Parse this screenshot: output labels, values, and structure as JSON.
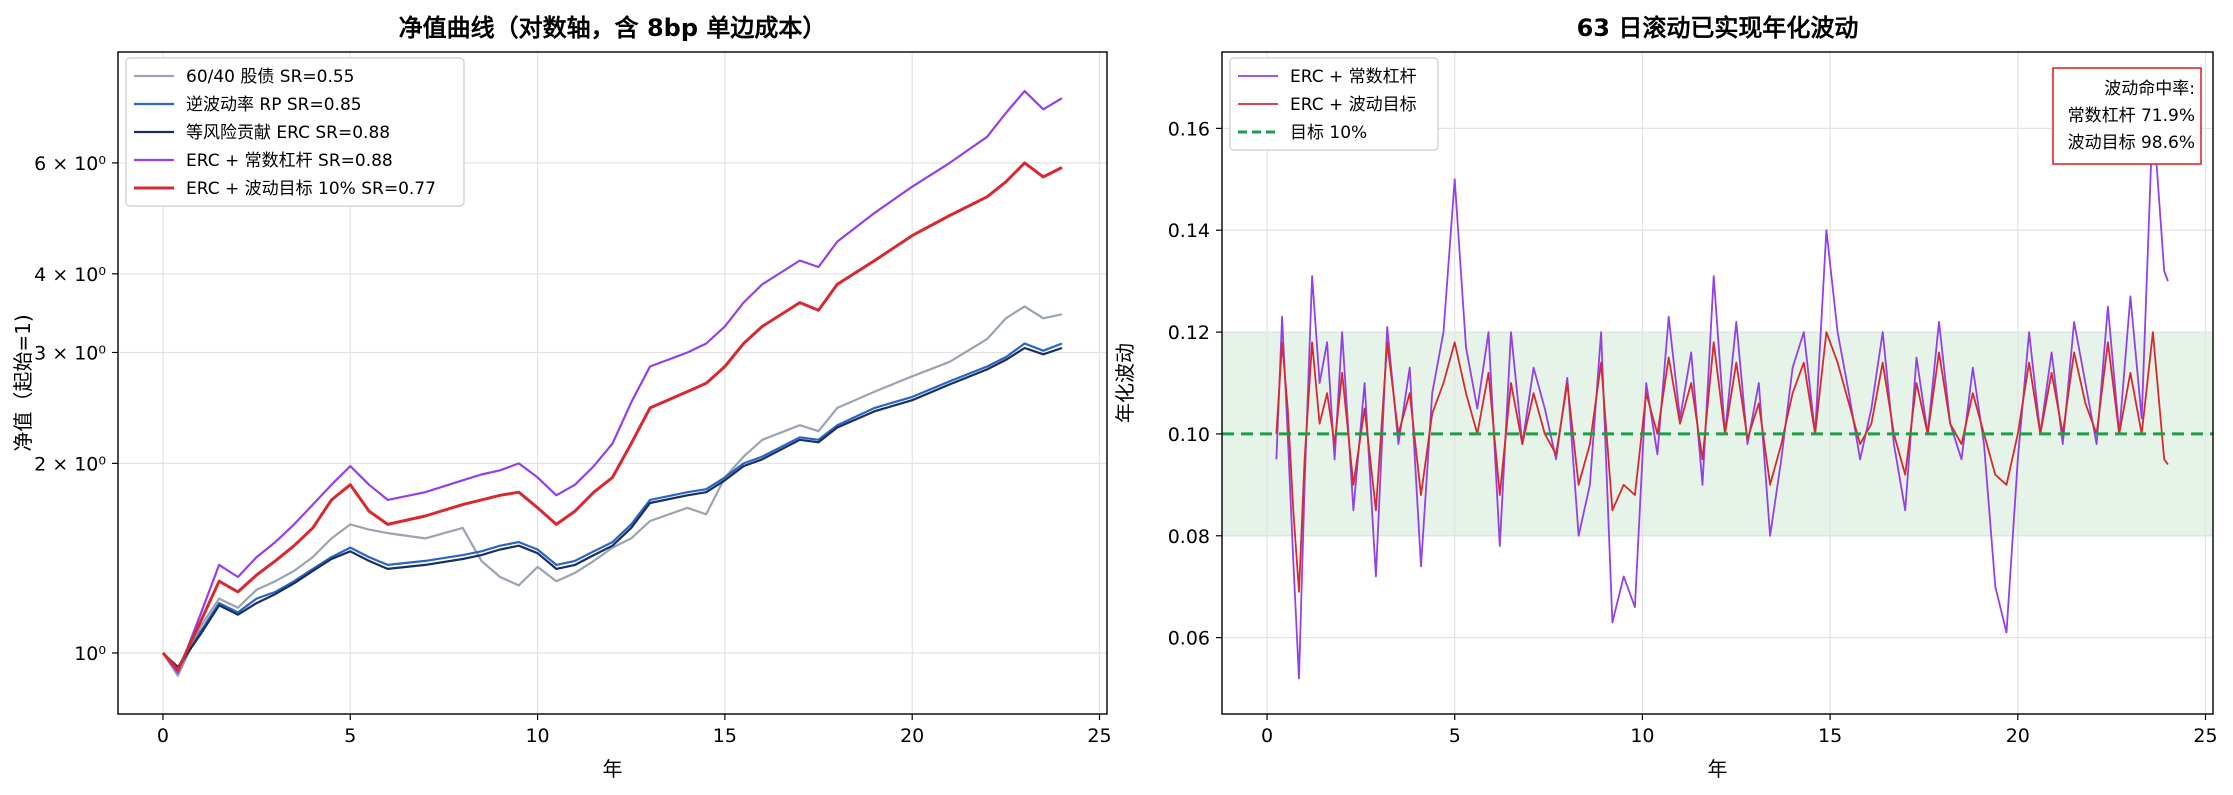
{
  "chart_data": [
    {
      "type": "line",
      "title": "净值曲线（对数轴，含 8bp 单边成本）",
      "xlabel": "年",
      "ylabel": "净值（起始=1)",
      "yscale": "log",
      "xlim": [
        -1.2,
        25.2
      ],
      "ylim": [
        0.8,
        9.0
      ],
      "xticks": [
        0,
        5,
        10,
        15,
        20,
        25
      ],
      "xtick_labels": [
        "0",
        "5",
        "10",
        "15",
        "20",
        "25"
      ],
      "yticks": [
        1,
        2,
        3,
        4,
        6
      ],
      "ytick_labels": [
        "10⁰",
        "2 × 10⁰",
        "3 × 10⁰",
        "4 × 10⁰",
        "6 × 10⁰"
      ],
      "grid": true,
      "legend_position": "upper-left",
      "series": [
        {
          "name": "60/40 股债  SR=0.55",
          "color": "#9aa3b0",
          "width": 2.2,
          "x": [
            0,
            0.4,
            1.0,
            1.5,
            2.0,
            2.5,
            3.0,
            3.5,
            4.0,
            4.5,
            5.0,
            5.5,
            6.0,
            7.0,
            8.0,
            8.5,
            9.0,
            9.5,
            10.0,
            10.5,
            11.0,
            11.5,
            12.0,
            12.5,
            13.0,
            14.0,
            14.5,
            15.0,
            15.5,
            16.0,
            17.0,
            17.5,
            18.0,
            19.0,
            20.0,
            21.0,
            22.0,
            22.5,
            23.0,
            23.5,
            24.0
          ],
          "y": [
            1.0,
            0.92,
            1.1,
            1.22,
            1.18,
            1.26,
            1.3,
            1.35,
            1.42,
            1.52,
            1.6,
            1.57,
            1.55,
            1.52,
            1.58,
            1.4,
            1.32,
            1.28,
            1.37,
            1.3,
            1.34,
            1.4,
            1.47,
            1.52,
            1.62,
            1.7,
            1.66,
            1.9,
            2.05,
            2.18,
            2.3,
            2.25,
            2.45,
            2.6,
            2.75,
            2.9,
            3.15,
            3.4,
            3.55,
            3.4,
            3.45
          ]
        },
        {
          "name": "逆波动率 RP  SR=0.85",
          "color": "#2a64c8",
          "width": 2.2,
          "x": [
            0,
            0.4,
            1.0,
            1.5,
            2.0,
            2.5,
            3.0,
            3.5,
            4.0,
            4.5,
            5.0,
            5.5,
            6.0,
            7.0,
            8.0,
            8.5,
            9.0,
            9.5,
            10.0,
            10.5,
            11.0,
            11.5,
            12.0,
            12.5,
            13.0,
            14.0,
            14.5,
            15.0,
            15.5,
            16.0,
            17.0,
            17.5,
            18.0,
            19.0,
            20.0,
            21.0,
            22.0,
            22.5,
            23.0,
            23.5,
            24.0
          ],
          "y": [
            1.0,
            0.94,
            1.08,
            1.2,
            1.16,
            1.22,
            1.25,
            1.3,
            1.36,
            1.42,
            1.47,
            1.42,
            1.38,
            1.4,
            1.43,
            1.45,
            1.48,
            1.5,
            1.46,
            1.38,
            1.4,
            1.45,
            1.5,
            1.6,
            1.75,
            1.8,
            1.82,
            1.9,
            2.0,
            2.05,
            2.2,
            2.18,
            2.3,
            2.45,
            2.55,
            2.7,
            2.85,
            2.95,
            3.1,
            3.02,
            3.1
          ]
        },
        {
          "name": "等风险贡献 ERC  SR=0.88",
          "color": "#1a2f5a",
          "width": 2.2,
          "x": [
            0,
            0.4,
            1.0,
            1.5,
            2.0,
            2.5,
            3.0,
            3.5,
            4.0,
            4.5,
            5.0,
            5.5,
            6.0,
            7.0,
            8.0,
            8.5,
            9.0,
            9.5,
            10.0,
            10.5,
            11.0,
            11.5,
            12.0,
            12.5,
            13.0,
            14.0,
            14.5,
            15.0,
            15.5,
            16.0,
            17.0,
            17.5,
            18.0,
            19.0,
            20.0,
            21.0,
            22.0,
            22.5,
            23.0,
            23.5,
            24.0
          ],
          "y": [
            1.0,
            0.95,
            1.07,
            1.19,
            1.15,
            1.2,
            1.24,
            1.29,
            1.35,
            1.41,
            1.45,
            1.4,
            1.36,
            1.38,
            1.41,
            1.43,
            1.46,
            1.48,
            1.44,
            1.36,
            1.38,
            1.43,
            1.48,
            1.58,
            1.73,
            1.78,
            1.8,
            1.88,
            1.98,
            2.03,
            2.18,
            2.16,
            2.28,
            2.42,
            2.52,
            2.67,
            2.82,
            2.92,
            3.05,
            2.98,
            3.05
          ]
        },
        {
          "name": "ERC + 常数杠杆  SR=0.88",
          "color": "#9440e8",
          "width": 2.2,
          "x": [
            0,
            0.4,
            1.0,
            1.5,
            2.0,
            2.5,
            3.0,
            3.5,
            4.0,
            4.5,
            5.0,
            5.5,
            6.0,
            7.0,
            8.0,
            8.5,
            9.0,
            9.5,
            10.0,
            10.5,
            11.0,
            11.5,
            12.0,
            12.5,
            13.0,
            14.0,
            14.5,
            15.0,
            15.5,
            16.0,
            17.0,
            17.5,
            18.0,
            19.0,
            20.0,
            21.0,
            22.0,
            22.5,
            23.0,
            23.5,
            24.0
          ],
          "y": [
            1.0,
            0.93,
            1.15,
            1.38,
            1.32,
            1.42,
            1.5,
            1.6,
            1.72,
            1.85,
            1.98,
            1.85,
            1.75,
            1.8,
            1.88,
            1.92,
            1.95,
            2.0,
            1.9,
            1.78,
            1.85,
            1.98,
            2.15,
            2.5,
            2.85,
            3.0,
            3.1,
            3.3,
            3.6,
            3.85,
            4.2,
            4.1,
            4.5,
            5.0,
            5.5,
            6.0,
            6.6,
            7.2,
            7.8,
            7.3,
            7.6
          ]
        },
        {
          "name": "ERC + 波动目标 10%  SR=0.77",
          "color": "#d72a30",
          "width": 3.0,
          "x": [
            0,
            0.4,
            1.0,
            1.5,
            2.0,
            2.5,
            3.0,
            3.5,
            4.0,
            4.5,
            5.0,
            5.5,
            6.0,
            7.0,
            8.0,
            8.5,
            9.0,
            9.5,
            10.0,
            10.5,
            11.0,
            11.5,
            12.0,
            12.5,
            13.0,
            14.0,
            14.5,
            15.0,
            15.5,
            16.0,
            17.0,
            17.5,
            18.0,
            19.0,
            20.0,
            21.0,
            22.0,
            22.5,
            23.0,
            23.5,
            24.0
          ],
          "y": [
            1.0,
            0.94,
            1.12,
            1.3,
            1.25,
            1.33,
            1.4,
            1.48,
            1.58,
            1.75,
            1.85,
            1.68,
            1.6,
            1.65,
            1.72,
            1.75,
            1.78,
            1.8,
            1.7,
            1.6,
            1.68,
            1.8,
            1.9,
            2.15,
            2.45,
            2.6,
            2.68,
            2.85,
            3.1,
            3.3,
            3.6,
            3.5,
            3.85,
            4.2,
            4.6,
            4.95,
            5.3,
            5.6,
            6.0,
            5.7,
            5.9
          ]
        }
      ]
    },
    {
      "type": "line",
      "title": "63 日滚动已实现年化波动",
      "xlabel": "年",
      "ylabel": "年化波动",
      "xlim": [
        -1.2,
        25.2
      ],
      "ylim": [
        0.045,
        0.175
      ],
      "xticks": [
        0,
        5,
        10,
        15,
        20,
        25
      ],
      "xtick_labels": [
        "0",
        "5",
        "10",
        "15",
        "20",
        "25"
      ],
      "yticks": [
        0.06,
        0.08,
        0.1,
        0.12,
        0.14,
        0.16
      ],
      "ytick_labels": [
        "0.06",
        "0.08",
        "0.10",
        "0.12",
        "0.14",
        "0.16"
      ],
      "grid": true,
      "legend_position": "upper-left",
      "target_band": [
        0.08,
        0.12
      ],
      "target_band_color": "#dcefe0",
      "series": [
        {
          "name": "ERC + 常数杠杆",
          "color": "#9440e8",
          "width": 1.8,
          "x": [
            0.25,
            0.4,
            0.55,
            0.7,
            0.85,
            1.0,
            1.2,
            1.4,
            1.6,
            1.8,
            2.0,
            2.3,
            2.6,
            2.9,
            3.2,
            3.5,
            3.8,
            4.1,
            4.4,
            4.7,
            5.0,
            5.3,
            5.6,
            5.9,
            6.2,
            6.5,
            6.8,
            7.1,
            7.4,
            7.7,
            8.0,
            8.3,
            8.6,
            8.9,
            9.2,
            9.5,
            9.8,
            10.1,
            10.4,
            10.7,
            11.0,
            11.3,
            11.6,
            11.9,
            12.2,
            12.5,
            12.8,
            13.1,
            13.4,
            13.7,
            14.0,
            14.3,
            14.6,
            14.9,
            15.2,
            15.5,
            15.8,
            16.1,
            16.4,
            16.7,
            17.0,
            17.3,
            17.6,
            17.9,
            18.2,
            18.5,
            18.8,
            19.1,
            19.4,
            19.7,
            20.0,
            20.3,
            20.6,
            20.9,
            21.2,
            21.5,
            21.8,
            22.1,
            22.4,
            22.7,
            23.0,
            23.3,
            23.6,
            23.9,
            24.0
          ],
          "y": [
            0.095,
            0.123,
            0.1,
            0.075,
            0.052,
            0.09,
            0.131,
            0.11,
            0.118,
            0.095,
            0.12,
            0.085,
            0.11,
            0.072,
            0.121,
            0.098,
            0.113,
            0.074,
            0.108,
            0.12,
            0.15,
            0.117,
            0.105,
            0.12,
            0.078,
            0.12,
            0.098,
            0.113,
            0.105,
            0.095,
            0.111,
            0.08,
            0.09,
            0.12,
            0.063,
            0.072,
            0.066,
            0.11,
            0.096,
            0.123,
            0.103,
            0.116,
            0.09,
            0.131,
            0.1,
            0.122,
            0.098,
            0.11,
            0.08,
            0.095,
            0.113,
            0.12,
            0.1,
            0.14,
            0.12,
            0.108,
            0.095,
            0.105,
            0.12,
            0.098,
            0.085,
            0.115,
            0.1,
            0.122,
            0.102,
            0.095,
            0.113,
            0.098,
            0.07,
            0.061,
            0.095,
            0.12,
            0.1,
            0.116,
            0.098,
            0.122,
            0.11,
            0.098,
            0.125,
            0.1,
            0.127,
            0.103,
            0.163,
            0.132,
            0.13
          ]
        },
        {
          "name": "ERC + 波动目标",
          "color": "#d72a30",
          "width": 1.8,
          "x": [
            0.25,
            0.4,
            0.55,
            0.7,
            0.85,
            1.0,
            1.2,
            1.4,
            1.6,
            1.8,
            2.0,
            2.3,
            2.6,
            2.9,
            3.2,
            3.5,
            3.8,
            4.1,
            4.4,
            4.7,
            5.0,
            5.3,
            5.6,
            5.9,
            6.2,
            6.5,
            6.8,
            7.1,
            7.4,
            7.7,
            8.0,
            8.3,
            8.6,
            8.9,
            9.2,
            9.5,
            9.8,
            10.1,
            10.4,
            10.7,
            11.0,
            11.3,
            11.6,
            11.9,
            12.2,
            12.5,
            12.8,
            13.1,
            13.4,
            13.7,
            14.0,
            14.3,
            14.6,
            14.9,
            15.2,
            15.5,
            15.8,
            16.1,
            16.4,
            16.7,
            17.0,
            17.3,
            17.6,
            17.9,
            18.2,
            18.5,
            18.8,
            19.1,
            19.4,
            19.7,
            20.0,
            20.3,
            20.6,
            20.9,
            21.2,
            21.5,
            21.8,
            22.1,
            22.4,
            22.7,
            23.0,
            23.3,
            23.6,
            23.9,
            24.0
          ],
          "y": [
            0.1,
            0.118,
            0.105,
            0.085,
            0.069,
            0.095,
            0.118,
            0.102,
            0.108,
            0.098,
            0.112,
            0.09,
            0.105,
            0.085,
            0.118,
            0.1,
            0.108,
            0.088,
            0.104,
            0.11,
            0.118,
            0.108,
            0.1,
            0.112,
            0.088,
            0.11,
            0.098,
            0.108,
            0.1,
            0.096,
            0.11,
            0.09,
            0.098,
            0.114,
            0.085,
            0.09,
            0.088,
            0.108,
            0.1,
            0.115,
            0.102,
            0.11,
            0.095,
            0.118,
            0.1,
            0.114,
            0.099,
            0.106,
            0.09,
            0.098,
            0.108,
            0.114,
            0.1,
            0.12,
            0.114,
            0.106,
            0.098,
            0.102,
            0.114,
            0.1,
            0.092,
            0.11,
            0.1,
            0.116,
            0.102,
            0.098,
            0.108,
            0.1,
            0.092,
            0.09,
            0.1,
            0.114,
            0.1,
            0.112,
            0.1,
            0.116,
            0.106,
            0.1,
            0.118,
            0.1,
            0.112,
            0.1,
            0.12,
            0.095,
            0.094
          ]
        },
        {
          "name": "目标 10%",
          "color": "#1e9e48",
          "width": 3.0,
          "dashed": true,
          "x": [
            -1.2,
            25.2
          ],
          "y": [
            0.1,
            0.1
          ]
        }
      ],
      "annotation": {
        "lines": [
          "波动命中率:",
          "常数杠杆 71.9%",
          "波动目标 98.6%"
        ],
        "border_color": "#e0282d",
        "position": "top-right"
      }
    }
  ]
}
